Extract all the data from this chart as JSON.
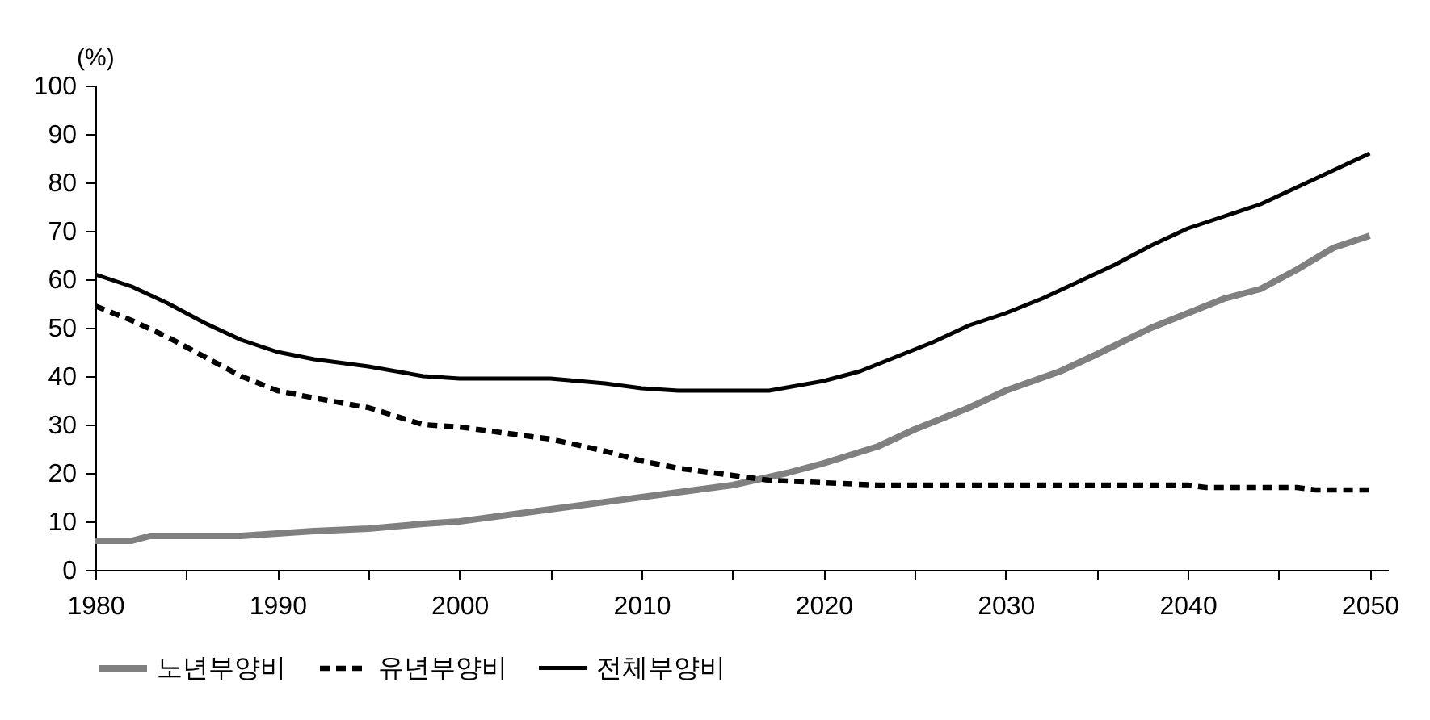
{
  "chart_data": {
    "type": "line",
    "ylabel": "(%)",
    "xlim": [
      1980,
      2051
    ],
    "ylim": [
      0,
      100
    ],
    "xticks": [
      1980,
      {
        "value": 1985,
        "label": null
      },
      1990,
      {
        "value": 1995,
        "label": null
      },
      2000,
      {
        "value": 2005,
        "label": null
      },
      2010,
      {
        "value": 2015,
        "label": null
      },
      2020,
      {
        "value": 2025,
        "label": null
      },
      2030,
      {
        "value": 2035,
        "label": null
      },
      2040,
      {
        "value": 2045,
        "label": null
      },
      2050
    ],
    "yticks": [
      0,
      10,
      20,
      30,
      40,
      50,
      60,
      70,
      80,
      90,
      100
    ],
    "grid": false,
    "legend": "bottom",
    "series": [
      {
        "name": "노년부양비",
        "color": "#808080",
        "line_style": "solid",
        "x": [
          1980,
          1982,
          1983,
          1988,
          1992,
          1995,
          1998,
          2000,
          2005,
          2010,
          2015,
          2018,
          2020,
          2023,
          2025,
          2028,
          2030,
          2033,
          2035,
          2038,
          2040,
          2042,
          2044,
          2046,
          2048,
          2050
        ],
        "values": [
          6,
          6,
          7,
          7,
          8,
          8.5,
          9.5,
          10,
          12.5,
          15,
          17.5,
          20,
          22,
          25.5,
          29,
          33.5,
          37,
          41,
          44.5,
          50,
          53,
          56,
          58,
          62,
          66.5,
          69
        ]
      },
      {
        "name": "유년부양비",
        "color": "#000000",
        "line_style": "dashed",
        "x": [
          1980,
          1982,
          1984,
          1986,
          1988,
          1990,
          1992,
          1995,
          1998,
          2000,
          2005,
          2008,
          2010,
          2012,
          2015,
          2017,
          2020,
          2023,
          2028,
          2040,
          2041,
          2046,
          2047,
          2050
        ],
        "values": [
          54.5,
          51.5,
          48,
          44,
          40,
          37,
          35.5,
          33.5,
          30,
          29.5,
          27,
          24.5,
          22.5,
          21,
          19.5,
          18.5,
          18,
          17.5,
          17.5,
          17.5,
          17,
          17,
          16.5,
          16.5
        ]
      },
      {
        "name": "전체부양비",
        "color": "#000000",
        "line_style": "solid",
        "x": [
          1980,
          1982,
          1984,
          1986,
          1988,
          1990,
          1992,
          1995,
          1998,
          2000,
          2005,
          2008,
          2010,
          2012,
          2017,
          2020,
          2022,
          2024,
          2026,
          2028,
          2030,
          2032,
          2034,
          2036,
          2038,
          2040,
          2042,
          2044,
          2046,
          2048,
          2050
        ],
        "values": [
          61,
          58.5,
          55,
          51,
          47.5,
          45,
          43.5,
          42,
          40,
          39.5,
          39.5,
          38.5,
          37.5,
          37,
          37,
          39,
          41,
          44,
          47,
          50.5,
          53,
          56,
          59.5,
          63,
          67,
          70.5,
          73,
          75.5,
          79,
          82.5,
          86
        ]
      }
    ]
  }
}
